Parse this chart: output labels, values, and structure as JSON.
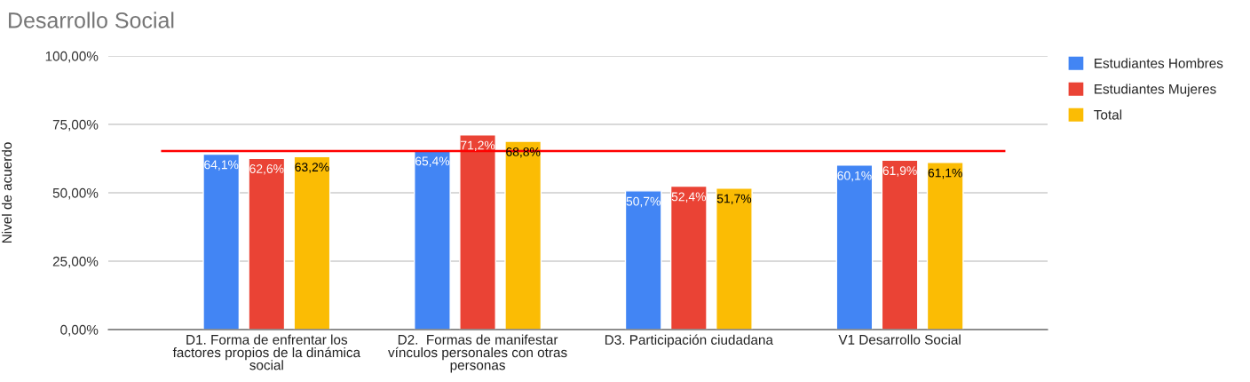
{
  "chart_data": {
    "type": "bar",
    "title": "Desarrollo Social",
    "ylabel": "Nivel de acuerdo",
    "categories": [
      "D1. Forma de enfrentar los\nfactores propios de la dinámica\nsocial",
      "D2.  Formas de manifestar\nvínculos personales con otras\npersonas",
      "D3. Participación ciudadana",
      "V1 Desarrollo Social"
    ],
    "series": [
      {
        "name": "Estudiantes Hombres",
        "color": "#4285f4",
        "values": [
          64.1,
          65.4,
          50.7,
          60.1
        ],
        "value_labels": [
          "64,1%",
          "65,4%",
          "50,7%",
          "60,1%"
        ]
      },
      {
        "name": "Estudiantes Mujeres",
        "color": "#ea4335",
        "values": [
          62.6,
          71.2,
          52.4,
          61.9
        ],
        "value_labels": [
          "62,6%",
          "71,2%",
          "52,4%",
          "61,9%"
        ]
      },
      {
        "name": "Total",
        "color": "#fbbc04",
        "values": [
          63.2,
          68.8,
          51.7,
          61.1
        ],
        "value_labels": [
          "63,2%",
          "68,8%",
          "51,7%",
          "61,1%"
        ]
      }
    ],
    "ylim": [
      0,
      100
    ],
    "yticks": [
      {
        "value": 0,
        "label": "0,00%"
      },
      {
        "value": 25,
        "label": "25,00%"
      },
      {
        "value": 50,
        "label": "50,00%"
      },
      {
        "value": 75,
        "label": "75,00%"
      },
      {
        "value": 100,
        "label": "100,00%"
      }
    ],
    "ref_lines": [
      {
        "axis": "y",
        "value": 65.3,
        "color": "#ff0000"
      }
    ],
    "grid": "y",
    "legend": "top right"
  }
}
